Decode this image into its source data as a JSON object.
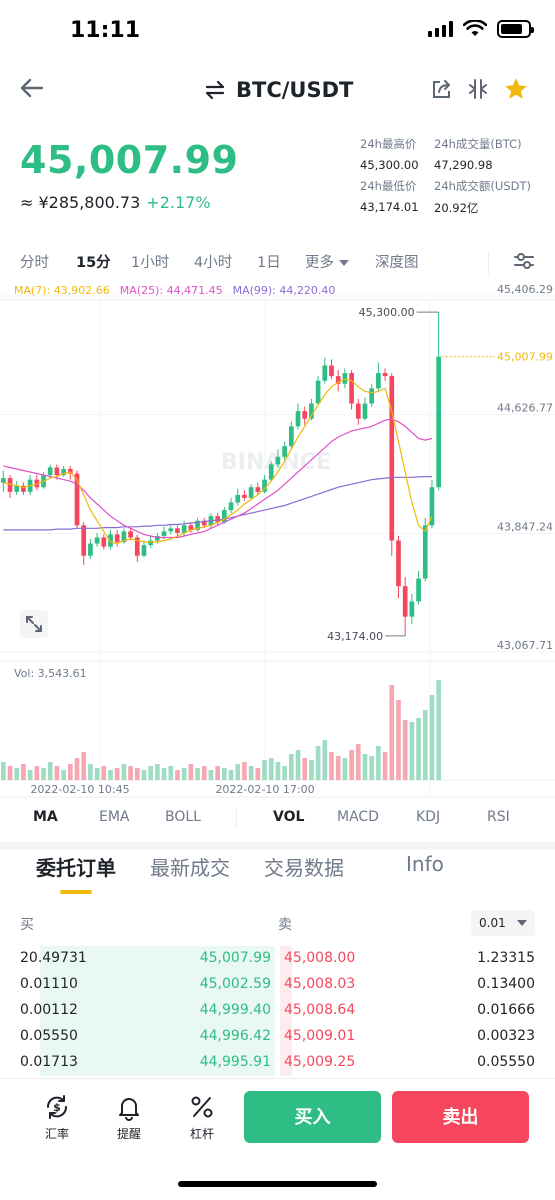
{
  "status": {
    "time": "11:11"
  },
  "header": {
    "pair": "BTC/USDT"
  },
  "ticker": {
    "price": "45,007.99",
    "cny": "≈ ¥285,800.73",
    "change": "+2.17%",
    "high_label": "24h最高价",
    "high": "45,300.00",
    "low_label": "24h最低价",
    "low": "43,174.01",
    "vol_btc_label": "24h成交量(BTC)",
    "vol_btc": "47,290.98",
    "vol_usdt_label": "24h成交额(USDT)",
    "vol_usdt": "20.92亿"
  },
  "timeframes": [
    "分时",
    "15分",
    "1小时",
    "4小时",
    "1日",
    "更多",
    "深度图"
  ],
  "ma": {
    "ma7": "MA(7): 43,902.66",
    "ma25": "MA(25): 44,471.45",
    "ma99": "MA(99): 44,220.40",
    "colors": {
      "ma7": "#f0b90b",
      "ma25": "#e051c7",
      "ma99": "#8b6cd6"
    }
  },
  "chart_data": {
    "type": "candlestick",
    "y_ticks": [
      "45,406.29",
      "44,626.77",
      "43,847.24",
      "43,067.71"
    ],
    "ylim": [
      43067.71,
      45406.29
    ],
    "high_marker": "45,300.00",
    "low_marker": "43,174.00",
    "last_price": "45,007.99",
    "watermark": "BINANCE",
    "x_ticks": [
      "2022-02-10 10:45",
      "2022-02-10 17:00"
    ],
    "volume_label": "Vol: 3,543.61",
    "candles": [
      {
        "o": 44180,
        "c": 44210,
        "h": 44260,
        "l": 44120
      },
      {
        "o": 44210,
        "c": 44120,
        "h": 44230,
        "l": 44080
      },
      {
        "o": 44120,
        "c": 44160,
        "h": 44190,
        "l": 44100
      },
      {
        "o": 44160,
        "c": 44120,
        "h": 44180,
        "l": 44100
      },
      {
        "o": 44120,
        "c": 44200,
        "h": 44230,
        "l": 44100
      },
      {
        "o": 44200,
        "c": 44150,
        "h": 44230,
        "l": 44130
      },
      {
        "o": 44150,
        "c": 44230,
        "h": 44250,
        "l": 44140
      },
      {
        "o": 44230,
        "c": 44280,
        "h": 44300,
        "l": 44210
      },
      {
        "o": 44280,
        "c": 44230,
        "h": 44300,
        "l": 44200
      },
      {
        "o": 44230,
        "c": 44270,
        "h": 44290,
        "l": 44220
      },
      {
        "o": 44270,
        "c": 44240,
        "h": 44290,
        "l": 44200
      },
      {
        "o": 44240,
        "c": 43900,
        "h": 44260,
        "l": 43880
      },
      {
        "o": 43900,
        "c": 43700,
        "h": 43920,
        "l": 43640
      },
      {
        "o": 43700,
        "c": 43780,
        "h": 43810,
        "l": 43680
      },
      {
        "o": 43780,
        "c": 43820,
        "h": 43850,
        "l": 43760
      },
      {
        "o": 43820,
        "c": 43760,
        "h": 43840,
        "l": 43740
      },
      {
        "o": 43760,
        "c": 43840,
        "h": 43870,
        "l": 43740
      },
      {
        "o": 43840,
        "c": 43790,
        "h": 43870,
        "l": 43760
      },
      {
        "o": 43790,
        "c": 43860,
        "h": 43880,
        "l": 43780
      },
      {
        "o": 43860,
        "c": 43820,
        "h": 43880,
        "l": 43800
      },
      {
        "o": 43820,
        "c": 43700,
        "h": 43840,
        "l": 43660
      },
      {
        "o": 43700,
        "c": 43770,
        "h": 43800,
        "l": 43690
      },
      {
        "o": 43770,
        "c": 43800,
        "h": 43830,
        "l": 43750
      },
      {
        "o": 43800,
        "c": 43830,
        "h": 43850,
        "l": 43780
      },
      {
        "o": 43830,
        "c": 43860,
        "h": 43890,
        "l": 43810
      },
      {
        "o": 43860,
        "c": 43880,
        "h": 43900,
        "l": 43840
      },
      {
        "o": 43880,
        "c": 43850,
        "h": 43900,
        "l": 43820
      },
      {
        "o": 43850,
        "c": 43900,
        "h": 43930,
        "l": 43830
      },
      {
        "o": 43900,
        "c": 43870,
        "h": 43920,
        "l": 43850
      },
      {
        "o": 43870,
        "c": 43930,
        "h": 43950,
        "l": 43860
      },
      {
        "o": 43930,
        "c": 43900,
        "h": 43950,
        "l": 43880
      },
      {
        "o": 43900,
        "c": 43960,
        "h": 43980,
        "l": 43880
      },
      {
        "o": 43960,
        "c": 43920,
        "h": 43980,
        "l": 43900
      },
      {
        "o": 43920,
        "c": 44000,
        "h": 44020,
        "l": 43910
      },
      {
        "o": 44000,
        "c": 44050,
        "h": 44080,
        "l": 43980
      },
      {
        "o": 44050,
        "c": 44100,
        "h": 44140,
        "l": 44030
      },
      {
        "o": 44100,
        "c": 44080,
        "h": 44130,
        "l": 44060
      },
      {
        "o": 44080,
        "c": 44150,
        "h": 44170,
        "l": 44070
      },
      {
        "o": 44150,
        "c": 44120,
        "h": 44180,
        "l": 44100
      },
      {
        "o": 44120,
        "c": 44200,
        "h": 44230,
        "l": 44110
      },
      {
        "o": 44200,
        "c": 44300,
        "h": 44320,
        "l": 44190
      },
      {
        "o": 44300,
        "c": 44350,
        "h": 44400,
        "l": 44280
      },
      {
        "o": 44350,
        "c": 44420,
        "h": 44450,
        "l": 44330
      },
      {
        "o": 44420,
        "c": 44550,
        "h": 44580,
        "l": 44400
      },
      {
        "o": 44550,
        "c": 44650,
        "h": 44700,
        "l": 44530
      },
      {
        "o": 44650,
        "c": 44600,
        "h": 44680,
        "l": 44560
      },
      {
        "o": 44600,
        "c": 44700,
        "h": 44730,
        "l": 44590
      },
      {
        "o": 44700,
        "c": 44850,
        "h": 44880,
        "l": 44690
      },
      {
        "o": 44850,
        "c": 44950,
        "h": 45000,
        "l": 44830
      },
      {
        "o": 44950,
        "c": 44880,
        "h": 44990,
        "l": 44860
      },
      {
        "o": 44880,
        "c": 44830,
        "h": 44920,
        "l": 44780
      },
      {
        "o": 44830,
        "c": 44900,
        "h": 44930,
        "l": 44800
      },
      {
        "o": 44900,
        "c": 44700,
        "h": 44920,
        "l": 44660
      },
      {
        "o": 44700,
        "c": 44600,
        "h": 44730,
        "l": 44560
      },
      {
        "o": 44600,
        "c": 44700,
        "h": 44740,
        "l": 44590
      },
      {
        "o": 44700,
        "c": 44800,
        "h": 44830,
        "l": 44680
      },
      {
        "o": 44800,
        "c": 44900,
        "h": 44970,
        "l": 44780
      },
      {
        "o": 44900,
        "c": 44880,
        "h": 44930,
        "l": 44850
      },
      {
        "o": 44880,
        "c": 43800,
        "h": 44900,
        "l": 43700
      },
      {
        "o": 43800,
        "c": 43500,
        "h": 43830,
        "l": 43420
      },
      {
        "o": 43500,
        "c": 43300,
        "h": 43560,
        "l": 43174
      },
      {
        "o": 43300,
        "c": 43400,
        "h": 43450,
        "l": 43250
      },
      {
        "o": 43400,
        "c": 43550,
        "h": 43600,
        "l": 43380
      },
      {
        "o": 43550,
        "c": 43900,
        "h": 43950,
        "l": 43530
      },
      {
        "o": 43900,
        "c": 44150,
        "h": 44200,
        "l": 43880
      },
      {
        "o": 44150,
        "c": 45008,
        "h": 45300,
        "l": 44130
      }
    ],
    "volumes": [
      18,
      14,
      12,
      16,
      10,
      14,
      12,
      18,
      14,
      10,
      16,
      22,
      28,
      16,
      12,
      14,
      10,
      12,
      16,
      14,
      12,
      10,
      14,
      16,
      12,
      14,
      10,
      12,
      16,
      12,
      14,
      10,
      14,
      12,
      10,
      16,
      18,
      14,
      12,
      20,
      22,
      18,
      14,
      26,
      30,
      22,
      20,
      34,
      40,
      28,
      24,
      22,
      30,
      36,
      26,
      24,
      34,
      28,
      95,
      80,
      60,
      58,
      62,
      70,
      85,
      100
    ],
    "ma7": [
      44180,
      44170,
      44160,
      44150,
      44160,
      44170,
      44190,
      44210,
      44220,
      44240,
      44250,
      44200,
      44100,
      44000,
      43930,
      43860,
      43790,
      43780,
      43800,
      43810,
      43800,
      43790,
      43790,
      43790,
      43800,
      43810,
      43830,
      43850,
      43870,
      43880,
      43890,
      43900,
      43920,
      43940,
      43970,
      44000,
      44040,
      44070,
      44100,
      44140,
      44190,
      44250,
      44320,
      44400,
      44480,
      44550,
      44620,
      44690,
      44760,
      44810,
      44840,
      44860,
      44850,
      44810,
      44780,
      44770,
      44780,
      44800,
      44650,
      44450,
      44250,
      44050,
      43900,
      43860,
      43960
    ],
    "ma25": [
      44290,
      44280,
      44270,
      44260,
      44250,
      44240,
      44230,
      44220,
      44210,
      44200,
      44190,
      44170,
      44130,
      44080,
      44040,
      44000,
      43960,
      43930,
      43900,
      43880,
      43860,
      43840,
      43830,
      43820,
      43820,
      43820,
      43820,
      43830,
      43840,
      43850,
      43860,
      43880,
      43900,
      43920,
      43940,
      43960,
      43980,
      44010,
      44040,
      44070,
      44100,
      44130,
      44170,
      44210,
      44250,
      44290,
      44330,
      44370,
      44410,
      44450,
      44480,
      44500,
      44520,
      44530,
      44540,
      44550,
      44570,
      44590,
      44600,
      44580,
      44550,
      44510,
      44470,
      44460,
      44470
    ],
    "ma99": [
      43870,
      43870,
      43870,
      43870,
      43870,
      43870,
      43870,
      43870,
      43875,
      43875,
      43875,
      43880,
      43880,
      43880,
      43880,
      43885,
      43885,
      43885,
      43890,
      43890,
      43890,
      43895,
      43895,
      43900,
      43900,
      43905,
      43905,
      43910,
      43915,
      43920,
      43925,
      43930,
      43935,
      43940,
      43950,
      43960,
      43970,
      43980,
      43990,
      44000,
      44010,
      44020,
      44030,
      44045,
      44060,
      44075,
      44090,
      44105,
      44120,
      44135,
      44150,
      44160,
      44170,
      44180,
      44190,
      44200,
      44205,
      44210,
      44215,
      44215,
      44215,
      44215,
      44218,
      44220,
      44220
    ]
  },
  "indicators": [
    "MA",
    "EMA",
    "BOLL",
    "VOL",
    "MACD",
    "KDJ",
    "RSI"
  ],
  "tabs": [
    "委托订单",
    "最新成交",
    "交易数据",
    "Info"
  ],
  "orderbook": {
    "bid_label": "买",
    "ask_label": "卖",
    "precision": "0.01",
    "rows": [
      {
        "bid_qty": "20.49731",
        "bid_price": "45,007.99",
        "ask_price": "45,008.00",
        "ask_qty": "1.23315",
        "bid_depth": 0.98,
        "ask_depth": 0.05
      },
      {
        "bid_qty": "0.01110",
        "bid_price": "45,002.59",
        "ask_price": "45,008.03",
        "ask_qty": "0.13400",
        "bid_depth": 0.98,
        "ask_depth": 0.05
      },
      {
        "bid_qty": "0.00112",
        "bid_price": "44,999.40",
        "ask_price": "45,008.64",
        "ask_qty": "0.01666",
        "bid_depth": 0.98,
        "ask_depth": 0.05
      },
      {
        "bid_qty": "0.05550",
        "bid_price": "44,996.42",
        "ask_price": "45,009.01",
        "ask_qty": "0.00323",
        "bid_depth": 0.98,
        "ask_depth": 0.05
      },
      {
        "bid_qty": "0.01713",
        "bid_price": "44,995.91",
        "ask_price": "45,009.25",
        "ask_qty": "0.05550",
        "bid_depth": 0.98,
        "ask_depth": 0.05
      }
    ]
  },
  "bottom": {
    "rate": "汇率",
    "alert": "提醒",
    "leverage": "杠杆",
    "buy": "买入",
    "sell": "卖出"
  }
}
